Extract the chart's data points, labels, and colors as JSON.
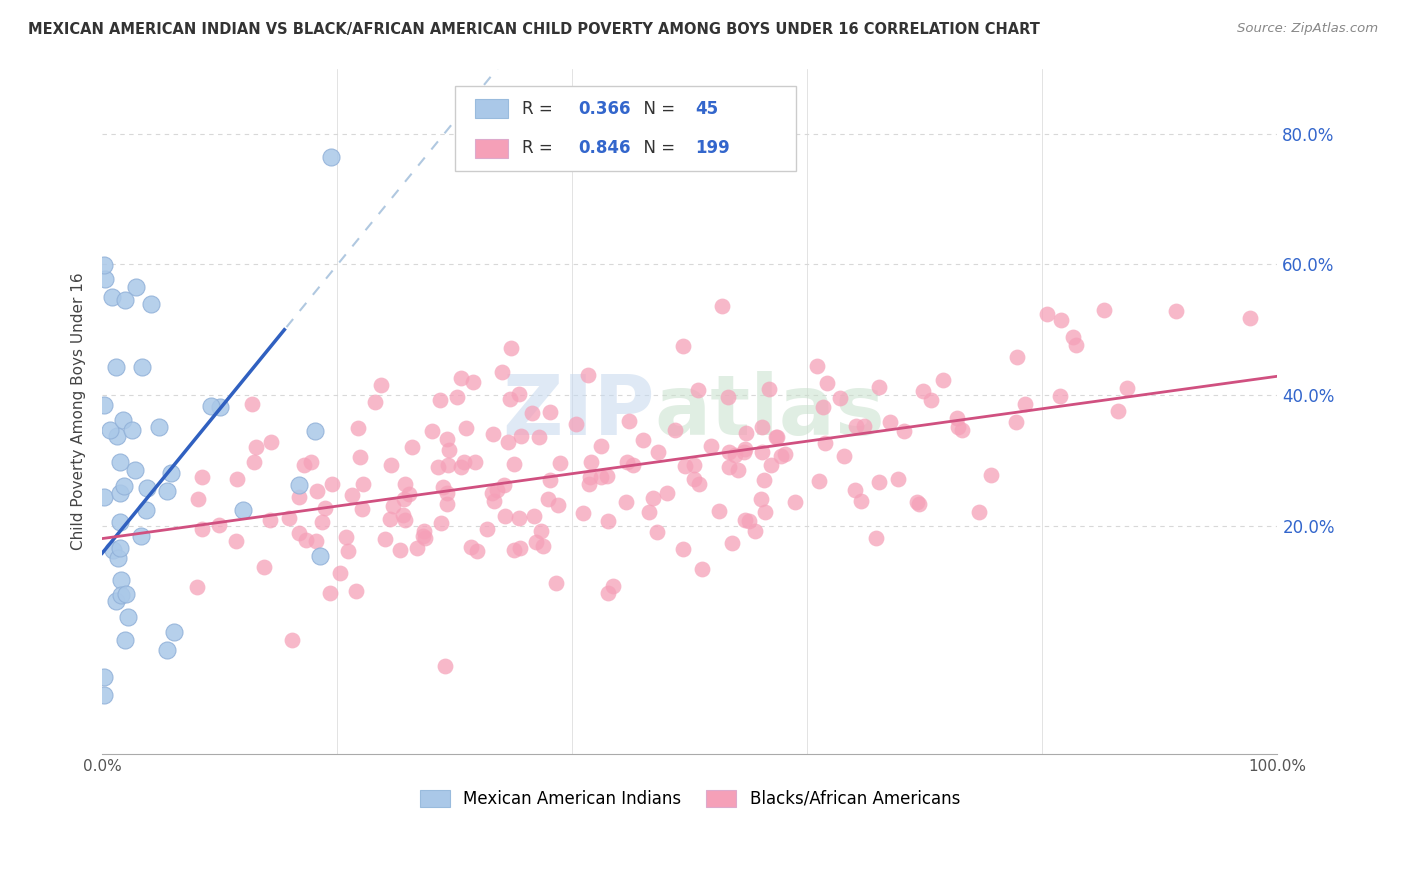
{
  "title": "MEXICAN AMERICAN INDIAN VS BLACK/AFRICAN AMERICAN CHILD POVERTY AMONG BOYS UNDER 16 CORRELATION CHART",
  "source": "Source: ZipAtlas.com",
  "ylabel": "Child Poverty Among Boys Under 16",
  "xlim": [
    0,
    1.0
  ],
  "ylim": [
    -0.15,
    0.9
  ],
  "y_ticks": [
    0.2,
    0.4,
    0.6,
    0.8
  ],
  "y_tick_labels": [
    "20.0%",
    "40.0%",
    "60.0%",
    "80.0%"
  ],
  "x_ticks": [
    0.0,
    0.2,
    0.4,
    0.6,
    0.8,
    1.0
  ],
  "x_tick_labels": [
    "0.0%",
    "",
    "",
    "",
    "",
    "100.0%"
  ],
  "watermark_zip": "ZIP",
  "watermark_atlas": "atlas",
  "blue_R": "0.366",
  "blue_N": "45",
  "pink_R": "0.846",
  "pink_N": "199",
  "blue_scatter_color": "#aac8e8",
  "pink_scatter_color": "#f5a0b8",
  "blue_line_color": "#3060c0",
  "pink_line_color": "#d05080",
  "blue_dashed_color": "#c8d8e8",
  "legend_label_blue": "Mexican American Indians",
  "legend_label_pink": "Blacks/African Americans",
  "background_color": "#ffffff",
  "grid_color": "#d8d8d8"
}
